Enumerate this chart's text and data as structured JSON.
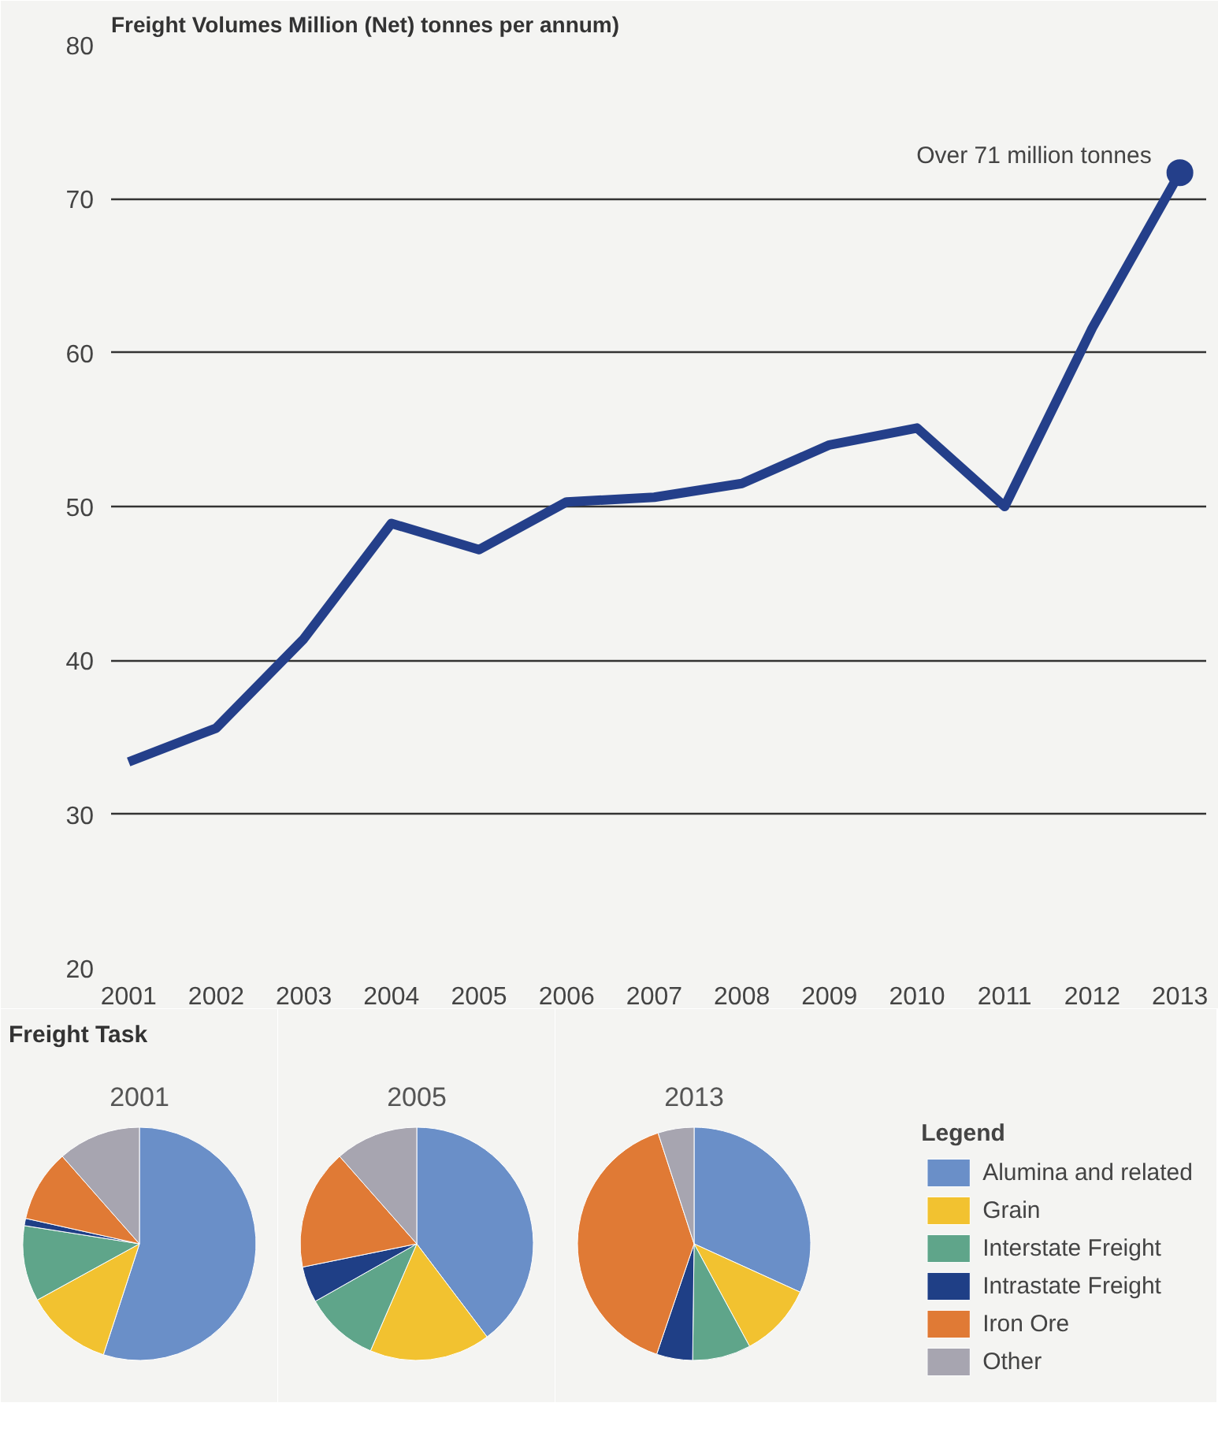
{
  "chart_data": [
    {
      "type": "line",
      "title": "Freight Volumes",
      "subtitle": "Million (Net) tonnes per annum)",
      "x": [
        2001,
        2002,
        2003,
        2004,
        2005,
        2006,
        2007,
        2008,
        2009,
        2010,
        2011,
        2012,
        2013
      ],
      "series": [
        {
          "color": "#243f8a",
          "values": [
            33.4,
            35.6,
            41.4,
            48.9,
            47.2,
            50.3,
            50.6,
            51.5,
            54.0,
            55.1,
            50.0,
            61.6,
            71.7
          ]
        }
      ],
      "xlim": [
        2000.8,
        2013.3
      ],
      "xticks": [
        2001,
        2002,
        2003,
        2004,
        2005,
        2006,
        2007,
        2008,
        2009,
        2010,
        2011,
        2012,
        2013
      ],
      "ylim": [
        20,
        80
      ],
      "yticks": [
        20,
        30,
        40,
        50,
        60,
        70,
        80
      ],
      "grid": "y",
      "marker": "none",
      "line_style": "solid",
      "annotations": [
        {
          "text": "Over 71 million tonnes",
          "x": 2013,
          "y": 71.7
        }
      ]
    },
    {
      "type": "pie",
      "title": "2001",
      "annotations": [
        "Freight Task"
      ],
      "categories": [
        null,
        null,
        null,
        null,
        null,
        null
      ],
      "values": [
        55,
        12,
        10.5,
        1,
        10,
        11.5
      ],
      "colors": [
        "#6a8fc8",
        "#f2c230",
        "#5fa58a",
        "#1f3f86",
        "#e07a35",
        "#a7a5b0"
      ]
    },
    {
      "type": "pie",
      "title": "2005",
      "categories": [
        null,
        null,
        null,
        null,
        null,
        null
      ],
      "values": [
        39.7,
        16.8,
        10.3,
        5,
        16.7,
        11.5
      ],
      "colors": [
        "#6a8fc8",
        "#f2c230",
        "#5fa58a",
        "#1f3f86",
        "#e07a35",
        "#a7a5b0"
      ]
    },
    {
      "type": "pie",
      "title": "2013",
      "legend": "right",
      "legend_title": "Legend",
      "categories": [
        "Alumina and related",
        "Grain",
        "Interstate Freight",
        "Intrastate Freight",
        "Iron Ore",
        "Other"
      ],
      "values": [
        31.8,
        10.3,
        8.1,
        5,
        39.8,
        5
      ],
      "colors": [
        "#6a8fc8",
        "#f2c230",
        "#5fa58a",
        "#1f3f86",
        "#e07a35",
        "#a7a5b0"
      ]
    }
  ]
}
